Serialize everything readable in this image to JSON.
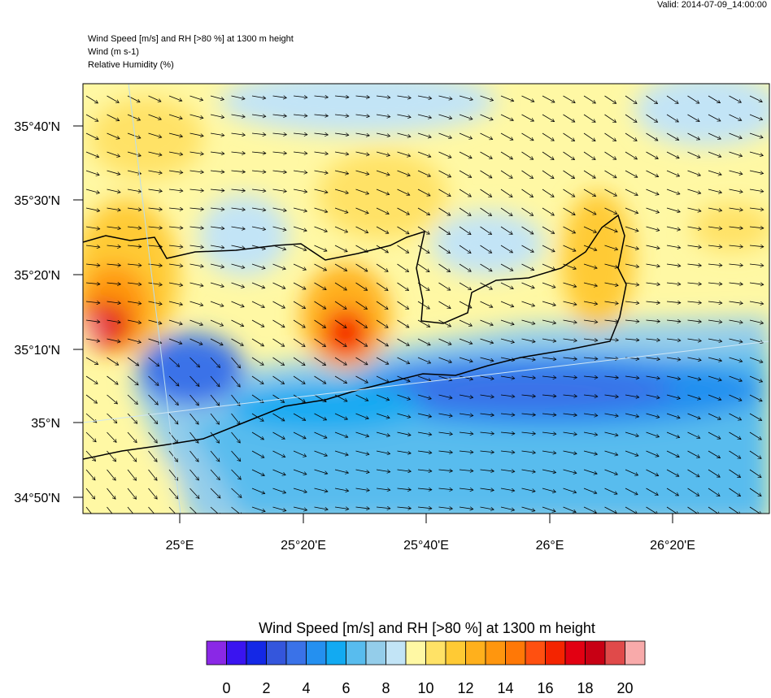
{
  "header": {
    "valid": "Valid: 2014-07-09_14:00:00",
    "lines": [
      "Wind Speed [m/s] and RH [>80 %] at 1300 m height",
      "Wind   (m s-1)",
      "Relative Humidity   (%)"
    ]
  },
  "axes": {
    "lat_labels": [
      "35°40'N",
      "35°30'N",
      "35°20'N",
      "35°10'N",
      "35°N",
      "34°50'N"
    ],
    "lon_labels": [
      "25°E",
      "25°20'E",
      "25°40'E",
      "26°E",
      "26°20'E"
    ]
  },
  "colorbar": {
    "title": "Wind Speed [m/s] and RH [>80 %] at 1300 m height",
    "labels": [
      "0",
      "2",
      "4",
      "6",
      "8",
      "10",
      "12",
      "14",
      "16",
      "18",
      "20"
    ],
    "colors": [
      "#8a28e6",
      "#3a14f0",
      "#1428e6",
      "#3456dc",
      "#3a72e8",
      "#2490f0",
      "#12aaf2",
      "#58bcee",
      "#94cdea",
      "#c2e4f6",
      "#fff8a4",
      "#ffe266",
      "#ffca34",
      "#ffb01c",
      "#ff960e",
      "#ff7806",
      "#ff5010",
      "#f42400",
      "#e20012",
      "#c80014",
      "#e04a4a",
      "#f8aaaa"
    ]
  }
}
